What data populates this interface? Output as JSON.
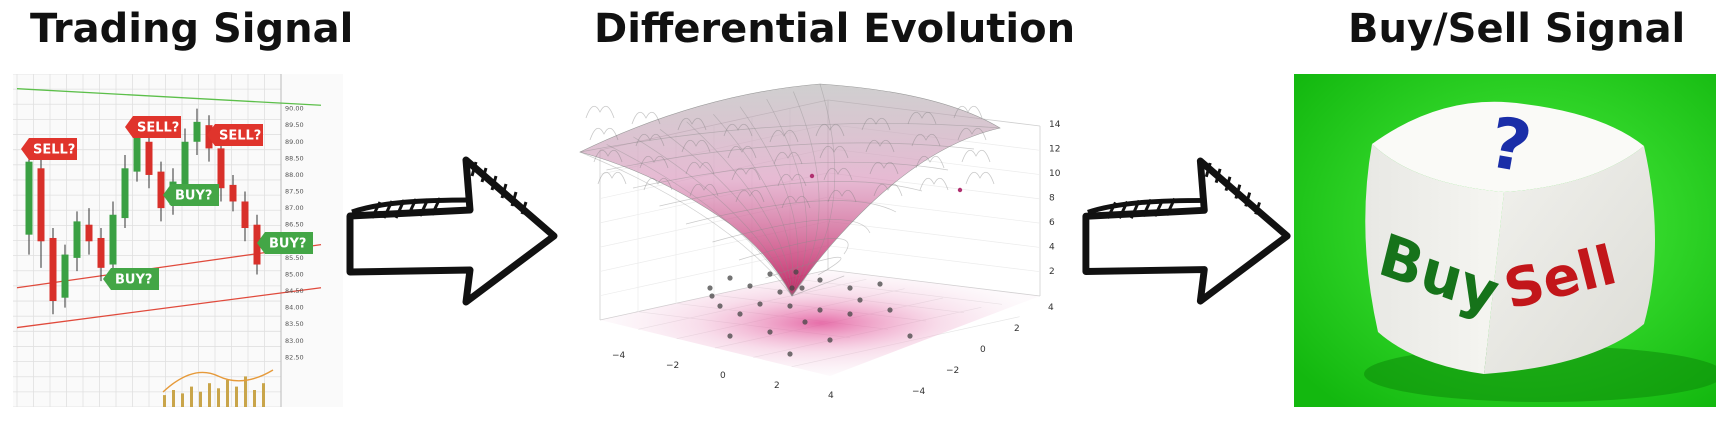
{
  "titles": {
    "trading": "Trading Signal",
    "de": "Differential Evolution",
    "buysell": "Buy/Sell Signal"
  },
  "trading_chart": {
    "signals": [
      {
        "label": "SELL?",
        "color": "#e0342c",
        "side": "sell"
      },
      {
        "label": "SELL?",
        "color": "#e0342c",
        "side": "sell"
      },
      {
        "label": "SELL?",
        "color": "#e0342c",
        "side": "sell"
      },
      {
        "label": "BUY?",
        "color": "#43a646",
        "side": "buy"
      },
      {
        "label": "BUY?",
        "color": "#43a646",
        "side": "buy"
      },
      {
        "label": "BUY?",
        "color": "#43a646",
        "side": "buy"
      }
    ],
    "price_ticks": [
      "90.00",
      "89.50",
      "89.00",
      "88.50",
      "88.00",
      "87.50",
      "87.00",
      "86.50",
      "86.00",
      "85.50",
      "85.00",
      "84.50",
      "84.00",
      "83.50",
      "83.00",
      "82.50"
    ],
    "candles": [
      {
        "o": 86.2,
        "c": 88.4,
        "h": 88.8,
        "l": 85.6
      },
      {
        "o": 88.2,
        "c": 86.0,
        "h": 88.6,
        "l": 85.2
      },
      {
        "o": 86.1,
        "c": 84.2,
        "h": 86.4,
        "l": 83.8
      },
      {
        "o": 84.3,
        "c": 85.6,
        "h": 85.9,
        "l": 84.0
      },
      {
        "o": 85.5,
        "c": 86.6,
        "h": 86.9,
        "l": 85.1
      },
      {
        "o": 86.5,
        "c": 86.0,
        "h": 87.0,
        "l": 85.6
      },
      {
        "o": 86.1,
        "c": 85.2,
        "h": 86.4,
        "l": 84.8
      },
      {
        "o": 85.3,
        "c": 86.8,
        "h": 87.2,
        "l": 85.0
      },
      {
        "o": 86.7,
        "c": 88.2,
        "h": 88.6,
        "l": 86.4
      },
      {
        "o": 88.1,
        "c": 89.2,
        "h": 89.5,
        "l": 87.8
      },
      {
        "o": 89.0,
        "c": 88.0,
        "h": 89.4,
        "l": 87.6
      },
      {
        "o": 88.1,
        "c": 87.0,
        "h": 88.4,
        "l": 86.6
      },
      {
        "o": 87.1,
        "c": 87.8,
        "h": 88.2,
        "l": 86.8
      },
      {
        "o": 87.7,
        "c": 89.0,
        "h": 89.4,
        "l": 87.4
      },
      {
        "o": 89.0,
        "c": 89.6,
        "h": 90.0,
        "l": 88.6
      },
      {
        "o": 89.5,
        "c": 88.8,
        "h": 89.8,
        "l": 88.4
      },
      {
        "o": 88.8,
        "c": 87.6,
        "h": 89.0,
        "l": 87.2
      },
      {
        "o": 87.7,
        "c": 87.2,
        "h": 88.0,
        "l": 86.9
      },
      {
        "o": 87.2,
        "c": 86.4,
        "h": 87.5,
        "l": 86.0
      },
      {
        "o": 86.5,
        "c": 85.3,
        "h": 86.8,
        "l": 85.0
      }
    ],
    "ylim": [
      82.0,
      90.5
    ],
    "resistance": [
      [
        0,
        90.6
      ],
      [
        1,
        90.1
      ]
    ],
    "support_lines": [
      [
        [
          0,
          84.6
        ],
        [
          1,
          85.9
        ]
      ],
      [
        [
          0,
          83.4
        ],
        [
          1,
          84.6
        ]
      ]
    ]
  },
  "de_surface": {
    "z_ticks": [
      "2",
      "4",
      "6",
      "8",
      "10",
      "12",
      "14"
    ],
    "x_ticks": [
      "−4",
      "−2",
      "0",
      "2",
      "4"
    ],
    "y_ticks": [
      "−4",
      "−2",
      "0",
      "2",
      "4"
    ],
    "surface_color": "#c7468a",
    "point_color": "#444444"
  },
  "dice": {
    "question": "?",
    "left_word": "Buy",
    "right_word": "Sell",
    "background": "#1fd41a",
    "left_color": "#16731a",
    "right_color": "#c2161a",
    "question_color": "#1a2ea8"
  }
}
